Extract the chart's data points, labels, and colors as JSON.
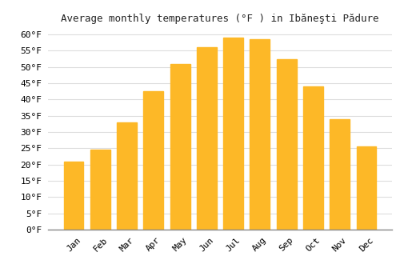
{
  "title": "Average monthly temperatures (°F ) in Ibăneşti Pădure",
  "months": [
    "Jan",
    "Feb",
    "Mar",
    "Apr",
    "May",
    "Jun",
    "Jul",
    "Aug",
    "Sep",
    "Oct",
    "Nov",
    "Dec"
  ],
  "values": [
    21,
    24.5,
    33,
    42.5,
    51,
    56,
    59,
    58.5,
    52.5,
    44,
    34,
    25.5
  ],
  "bar_color_top": "#FDB827",
  "bar_color_bottom": "#F5A020",
  "background_color": "#FFFFFF",
  "grid_color": "#DDDDDD",
  "ylim": [
    0,
    62
  ],
  "yticks": [
    0,
    5,
    10,
    15,
    20,
    25,
    30,
    35,
    40,
    45,
    50,
    55,
    60
  ],
  "title_fontsize": 9,
  "tick_fontsize": 8,
  "ylabel_format": "°F"
}
